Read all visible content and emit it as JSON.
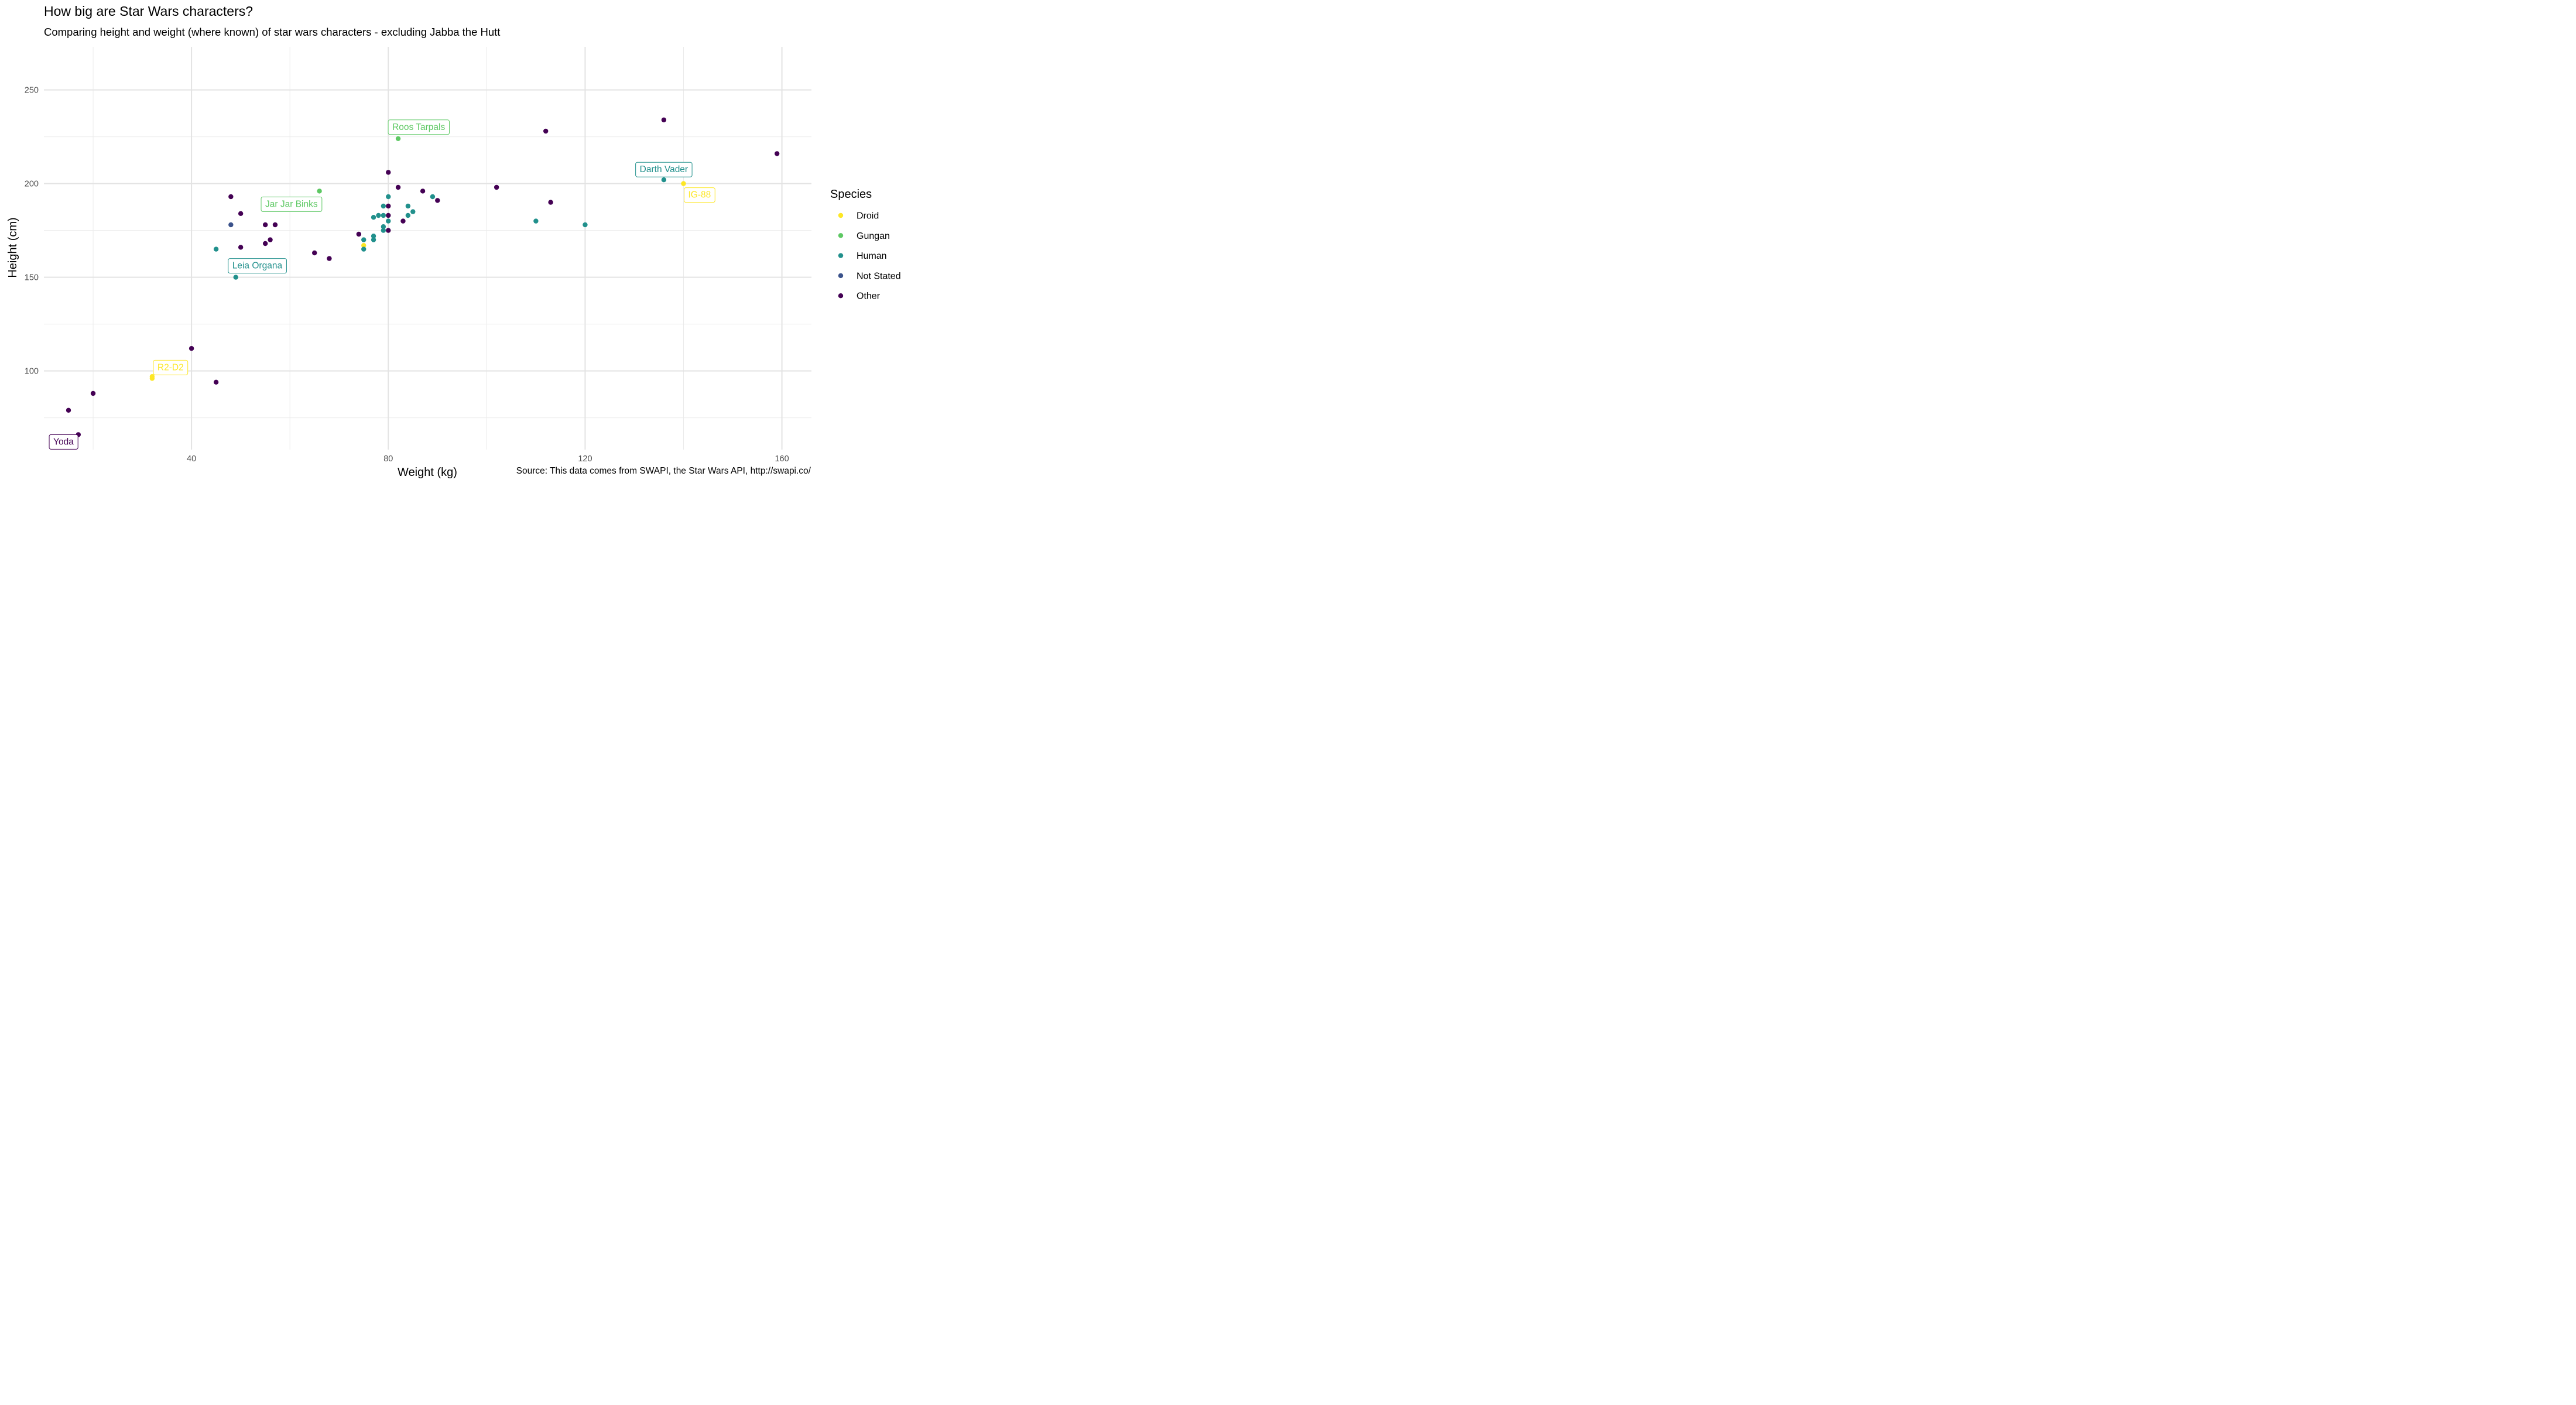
{
  "title": "How big are Star Wars characters?",
  "subtitle": "Comparing height and weight (where known) of star wars characters - excluding Jabba the Hutt",
  "caption": "Source: This data comes from SWAPI, the Star Wars API, http://swapi.co/",
  "chart_data": {
    "type": "scatter",
    "xlabel": "Weight (kg)",
    "ylabel": "Height (cm)",
    "xlim": [
      10,
      166
    ],
    "ylim": [
      58,
      273
    ],
    "x_ticks": [
      40,
      80,
      120,
      160
    ],
    "y_ticks": [
      100,
      150,
      200,
      250
    ],
    "grid": true,
    "legend_title": "Species",
    "legend_position": "right",
    "colors": {
      "Droid": "#FDE725",
      "Gungan": "#5DC863",
      "Human": "#21908C",
      "Not Stated": "#3B528B",
      "Other": "#440154"
    },
    "series": [
      {
        "name": "Droid",
        "points": [
          [
            32,
            96
          ],
          [
            32,
            97
          ],
          [
            75,
            167
          ],
          [
            140,
            200
          ]
        ]
      },
      {
        "name": "Gungan",
        "points": [
          [
            66,
            196
          ],
          [
            82,
            224
          ]
        ]
      },
      {
        "name": "Human",
        "points": [
          [
            45,
            165
          ],
          [
            49,
            150
          ],
          [
            75,
            165
          ],
          [
            75,
            170
          ],
          [
            77,
            170
          ],
          [
            77,
            172
          ],
          [
            77,
            182
          ],
          [
            78,
            183
          ],
          [
            79,
            175
          ],
          [
            79,
            177
          ],
          [
            79,
            183
          ],
          [
            79,
            188
          ],
          [
            80,
            180
          ],
          [
            80,
            193
          ],
          [
            84,
            183
          ],
          [
            84,
            188
          ],
          [
            85,
            185
          ],
          [
            89,
            193
          ],
          [
            110,
            180
          ],
          [
            120,
            178
          ],
          [
            136,
            202
          ]
        ]
      },
      {
        "name": "Not Stated",
        "points": [
          [
            48,
            178
          ]
        ]
      },
      {
        "name": "Other",
        "points": [
          [
            15,
            79
          ],
          [
            17,
            66
          ],
          [
            20,
            88
          ],
          [
            40,
            112
          ],
          [
            45,
            94
          ],
          [
            48,
            193
          ],
          [
            50,
            166
          ],
          [
            50,
            184
          ],
          [
            55,
            168
          ],
          [
            55,
            178
          ],
          [
            56,
            170
          ],
          [
            57,
            178
          ],
          [
            65,
            163
          ],
          [
            68,
            160
          ],
          [
            74,
            173
          ],
          [
            80,
            175
          ],
          [
            80,
            183
          ],
          [
            80,
            188
          ],
          [
            80,
            206
          ],
          [
            82,
            198
          ],
          [
            83,
            180
          ],
          [
            87,
            196
          ],
          [
            90,
            191
          ],
          [
            102,
            198
          ],
          [
            112,
            228
          ],
          [
            113,
            190
          ],
          [
            136,
            234
          ],
          [
            159,
            216
          ]
        ]
      }
    ],
    "annotations": [
      {
        "label": "Roos Tarpals",
        "species": "Gungan",
        "x": 82,
        "y": 224
      },
      {
        "label": "Darth Vader",
        "species": "Human",
        "x": 136,
        "y": 202
      },
      {
        "label": "IG-88",
        "species": "Droid",
        "x": 140,
        "y": 200
      },
      {
        "label": "Jar Jar Binks",
        "species": "Gungan",
        "x": 66,
        "y": 196
      },
      {
        "label": "Leia Organa",
        "species": "Human",
        "x": 49,
        "y": 150
      },
      {
        "label": "R2-D2",
        "species": "Droid",
        "x": 32,
        "y": 96
      },
      {
        "label": "Yoda",
        "species": "Other",
        "x": 17,
        "y": 66
      }
    ]
  }
}
